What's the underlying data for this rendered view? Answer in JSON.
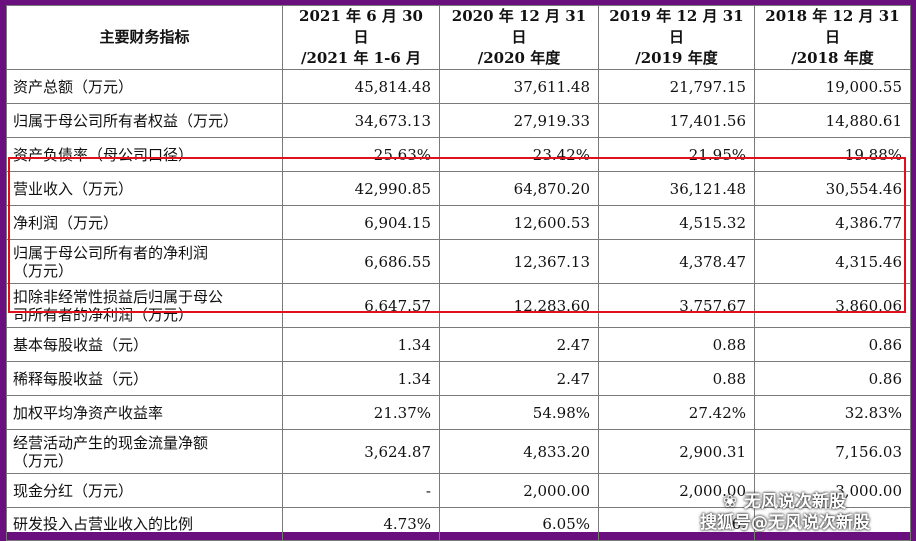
{
  "table": {
    "headers": [
      {
        "line1": "主要财务指标",
        "line2": ""
      },
      {
        "line1": "2021 年 6 月 30 日",
        "line2": "/2021 年 1-6 月"
      },
      {
        "line1": "2020 年 12 月 31 日",
        "line2": "/2020 年度"
      },
      {
        "line1": "2019 年 12 月 31 日",
        "line2": "/2019 年度"
      },
      {
        "line1": "2018 年 12 月 31 日",
        "line2": "/2018 年度"
      }
    ],
    "rows": [
      {
        "label_line1": "资产总额（万元）",
        "label_line2": "",
        "values": [
          "45,814.48",
          "37,611.48",
          "21,797.15",
          "19,000.55"
        ]
      },
      {
        "label_line1": "归属于母公司所有者权益（万元）",
        "label_line2": "",
        "values": [
          "34,673.13",
          "27,919.33",
          "17,401.56",
          "14,880.61"
        ]
      },
      {
        "label_line1": "资产负债率（母公司口径）",
        "label_line2": "",
        "values": [
          "25.63%",
          "23.42%",
          "21.95%",
          "19.88%"
        ]
      },
      {
        "label_line1": "营业收入（万元）",
        "label_line2": "",
        "values": [
          "42,990.85",
          "64,870.20",
          "36,121.48",
          "30,554.46"
        ]
      },
      {
        "label_line1": "净利润（万元）",
        "label_line2": "",
        "values": [
          "6,904.15",
          "12,600.53",
          "4,515.32",
          "4,386.77"
        ]
      },
      {
        "label_line1": "归属于母公司所有者的净利润",
        "label_line2": "（万元）",
        "values": [
          "6,686.55",
          "12,367.13",
          "4,378.47",
          "4,315.46"
        ]
      },
      {
        "label_line1": "扣除非经常性损益后归属于母公",
        "label_line2": "司所有者的净利润（万元）",
        "values": [
          "6,647.57",
          "12,283.60",
          "3,757.67",
          "3,860.06"
        ]
      },
      {
        "label_line1": "基本每股收益（元）",
        "label_line2": "",
        "values": [
          "1.34",
          "2.47",
          "0.88",
          "0.86"
        ]
      },
      {
        "label_line1": "稀释每股收益（元）",
        "label_line2": "",
        "values": [
          "1.34",
          "2.47",
          "0.88",
          "0.86"
        ]
      },
      {
        "label_line1": "加权平均净资产收益率",
        "label_line2": "",
        "values": [
          "21.37%",
          "54.98%",
          "27.42%",
          "32.83%"
        ]
      },
      {
        "label_line1": "经营活动产生的现金流量净额",
        "label_line2": "（万元）",
        "values": [
          "3,624.87",
          "4,833.20",
          "2,900.31",
          "7,156.03"
        ]
      },
      {
        "label_line1": "现金分红（万元）",
        "label_line2": "",
        "values": [
          "-",
          "2,000.00",
          "2,000.00",
          "3,000.00"
        ]
      },
      {
        "label_line1": "研发投入占营业收入的比例",
        "label_line2": "",
        "values": [
          "4.73%",
          "6.05%",
          "6.",
          ""
        ]
      }
    ]
  },
  "watermark": {
    "line1": "无风说次新股",
    "line1_icon": "wechat-icon",
    "line2": "搜狐号@无风说次新股"
  },
  "colors": {
    "frame": "#6a0f7e",
    "highlight_border": "#e0101c"
  }
}
